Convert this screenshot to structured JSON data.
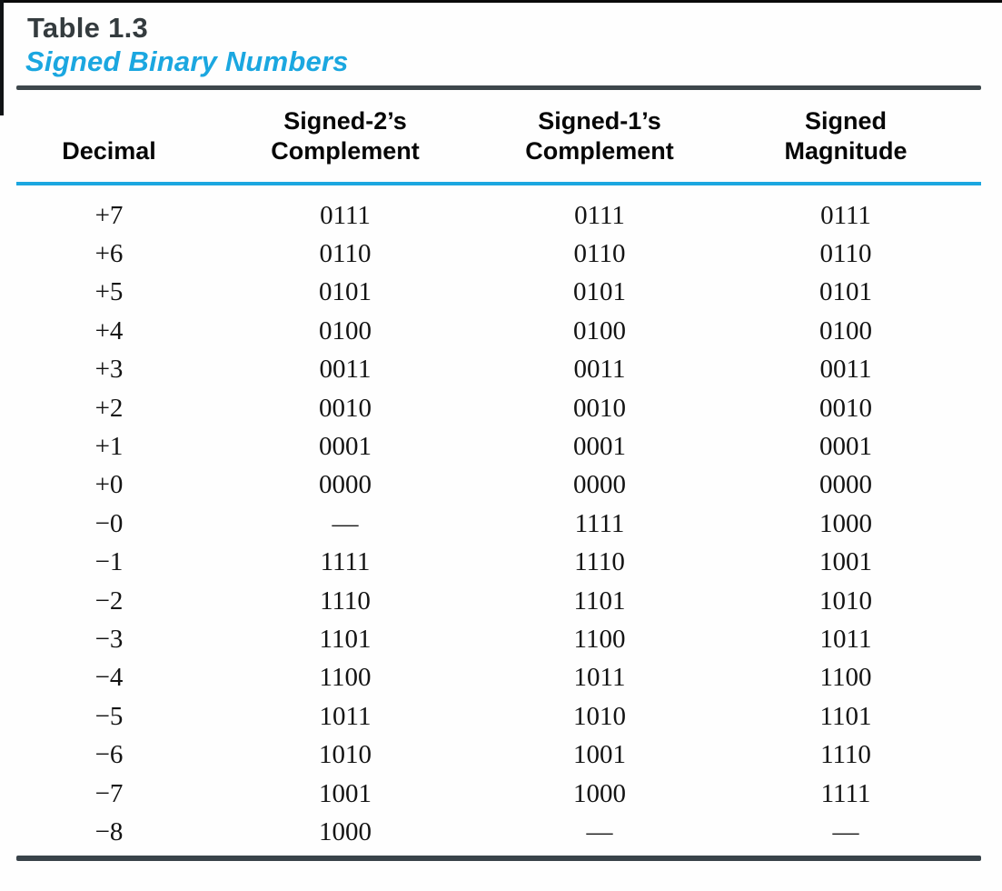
{
  "page": {
    "caption_number": "Table 1.3",
    "caption_title": "Signed Binary Numbers"
  },
  "colors": {
    "accent_cyan": "#1BA7E0",
    "rule_dark": "#3D474B",
    "caption_number_color": "#343B3E",
    "body_text": "#131313"
  },
  "table": {
    "headers": [
      {
        "id": "decimal",
        "lines": [
          "Decimal"
        ]
      },
      {
        "id": "signed-2s-complement",
        "lines": [
          "Signed-2’s",
          "Complement"
        ]
      },
      {
        "id": "signed-1s-complement",
        "lines": [
          "Signed-1’s",
          "Complement"
        ]
      },
      {
        "id": "signed-magnitude",
        "lines": [
          "Signed",
          "Magnitude"
        ]
      }
    ],
    "rows": [
      [
        "+7",
        "0111",
        "0111",
        "0111"
      ],
      [
        "+6",
        "0110",
        "0110",
        "0110"
      ],
      [
        "+5",
        "0101",
        "0101",
        "0101"
      ],
      [
        "+4",
        "0100",
        "0100",
        "0100"
      ],
      [
        "+3",
        "0011",
        "0011",
        "0011"
      ],
      [
        "+2",
        "0010",
        "0010",
        "0010"
      ],
      [
        "+1",
        "0001",
        "0001",
        "0001"
      ],
      [
        "+0",
        "0000",
        "0000",
        "0000"
      ],
      [
        "−0",
        "—",
        "1111",
        "1000"
      ],
      [
        "−1",
        "1111",
        "1110",
        "1001"
      ],
      [
        "−2",
        "1110",
        "1101",
        "1010"
      ],
      [
        "−3",
        "1101",
        "1100",
        "1011"
      ],
      [
        "−4",
        "1100",
        "1011",
        "1100"
      ],
      [
        "−5",
        "1011",
        "1010",
        "1101"
      ],
      [
        "−6",
        "1010",
        "1001",
        "1110"
      ],
      [
        "−7",
        "1001",
        "1000",
        "1111"
      ],
      [
        "−8",
        "1000",
        "—",
        "—"
      ]
    ],
    "empty_marker": "—"
  }
}
